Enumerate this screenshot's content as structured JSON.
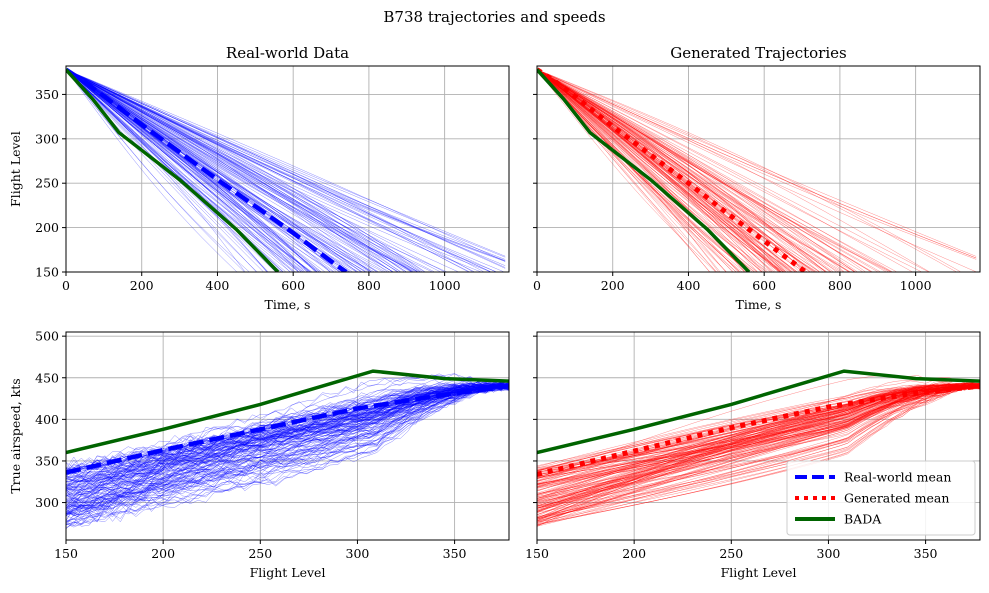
{
  "figure": {
    "title": "B738 trajectories and speeds"
  },
  "colors": {
    "realworld": "#0000ff",
    "generated": "#ff0000",
    "bada": "#006400",
    "grid": "#b0b0b0"
  },
  "legend": {
    "location": "lower-right",
    "entries": [
      {
        "label": "Real-world mean",
        "style": "dashed",
        "color": "#0000ff"
      },
      {
        "label": "Generated mean",
        "style": "dotted",
        "color": "#ff0000"
      },
      {
        "label": "BADA",
        "style": "solid",
        "color": "#006400"
      }
    ]
  },
  "chart_data": [
    {
      "id": "top-left",
      "type": "line",
      "title": "Real-world Data",
      "xlabel": "Time, s",
      "ylabel": "Flight Level",
      "xlim": [
        0,
        1170
      ],
      "ylim": [
        150,
        382
      ],
      "xticks": [
        0,
        200,
        400,
        600,
        800,
        1000
      ],
      "yticks": [
        150,
        200,
        250,
        300,
        350
      ],
      "show_xticklabels": true,
      "show_yticklabels": true,
      "grid": true,
      "ensemble": {
        "name": "Real-world trajectories",
        "color": "#0000ff",
        "count": 150,
        "mode": "descent",
        "x0": 0,
        "y0": 378,
        "rate_mean": 0.315,
        "rate_sd": 0.075,
        "seed": 11
      },
      "series": [
        {
          "name": "Real-world mean",
          "style": "dashed",
          "color": "#0000ff",
          "x": [
            0,
            50,
            100,
            200,
            300,
            400,
            500,
            600,
            700,
            740
          ],
          "y": [
            378,
            364,
            348,
            316,
            285,
            254,
            224,
            194,
            162,
            150
          ]
        },
        {
          "name": "BADA",
          "style": "solid",
          "color": "#006400",
          "x": [
            0,
            70,
            140,
            300,
            450,
            560
          ],
          "y": [
            378,
            345,
            307,
            254,
            198,
            150
          ]
        }
      ]
    },
    {
      "id": "top-right",
      "type": "line",
      "title": "Generated Trajectories",
      "xlabel": "Time, s",
      "ylabel": "",
      "xlim": [
        0,
        1170
      ],
      "ylim": [
        150,
        382
      ],
      "xticks": [
        0,
        200,
        400,
        600,
        800,
        1000
      ],
      "yticks": [
        150,
        200,
        250,
        300,
        350
      ],
      "show_xticklabels": true,
      "show_yticklabels": false,
      "grid": true,
      "ensemble": {
        "name": "Generated trajectories",
        "color": "#ff0000",
        "count": 150,
        "mode": "descent",
        "x0": 0,
        "y0": 378,
        "rate_mean": 0.33,
        "rate_sd": 0.07,
        "seed": 23
      },
      "series": [
        {
          "name": "Generated mean",
          "style": "dotted",
          "color": "#ff0000",
          "x": [
            0,
            50,
            100,
            200,
            300,
            400,
            500,
            600,
            700,
            710
          ],
          "y": [
            378,
            364,
            348,
            314,
            282,
            250,
            217,
            185,
            153,
            150
          ]
        },
        {
          "name": "BADA",
          "style": "solid",
          "color": "#006400",
          "x": [
            0,
            70,
            140,
            300,
            450,
            560
          ],
          "y": [
            378,
            345,
            307,
            254,
            198,
            150
          ]
        }
      ]
    },
    {
      "id": "bottom-left",
      "type": "line",
      "title": "",
      "xlabel": "Flight Level",
      "ylabel": "True airspeed, kts",
      "xlim": [
        150,
        378
      ],
      "ylim": [
        255,
        505
      ],
      "xticks": [
        150,
        200,
        250,
        300,
        350
      ],
      "yticks": [
        300,
        350,
        400,
        450,
        500
      ],
      "show_xticklabels": true,
      "show_yticklabels": true,
      "grid": true,
      "ensemble": {
        "name": "Real-world speeds",
        "color": "#0000ff",
        "count": 150,
        "mode": "speed",
        "noise": 4.5,
        "seed": 37
      },
      "series": [
        {
          "name": "Real-world mean",
          "style": "dashed",
          "color": "#0000ff",
          "x": [
            150,
            200,
            250,
            300,
            340,
            378
          ],
          "y": [
            336,
            363,
            388,
            413,
            428,
            440
          ]
        },
        {
          "name": "BADA",
          "style": "solid",
          "color": "#006400",
          "x": [
            150,
            200,
            250,
            308,
            345,
            378
          ],
          "y": [
            360,
            388,
            418,
            458,
            449,
            446
          ]
        }
      ]
    },
    {
      "id": "bottom-right",
      "type": "line",
      "title": "",
      "xlabel": "Flight Level",
      "ylabel": "",
      "xlim": [
        150,
        378
      ],
      "ylim": [
        255,
        505
      ],
      "xticks": [
        150,
        200,
        250,
        300,
        350
      ],
      "yticks": [
        300,
        350,
        400,
        450,
        500
      ],
      "show_xticklabels": true,
      "show_yticklabels": false,
      "grid": true,
      "ensemble": {
        "name": "Generated speeds",
        "color": "#ff0000",
        "count": 150,
        "mode": "speed",
        "noise": 0,
        "seed": 53
      },
      "series": [
        {
          "name": "Generated mean",
          "style": "dotted",
          "color": "#ff0000",
          "x": [
            150,
            200,
            250,
            300,
            340,
            378
          ],
          "y": [
            334,
            362,
            390,
            415,
            430,
            440
          ]
        },
        {
          "name": "BADA",
          "style": "solid",
          "color": "#006400",
          "x": [
            150,
            200,
            250,
            308,
            345,
            378
          ],
          "y": [
            360,
            388,
            418,
            458,
            449,
            446
          ]
        }
      ]
    }
  ]
}
